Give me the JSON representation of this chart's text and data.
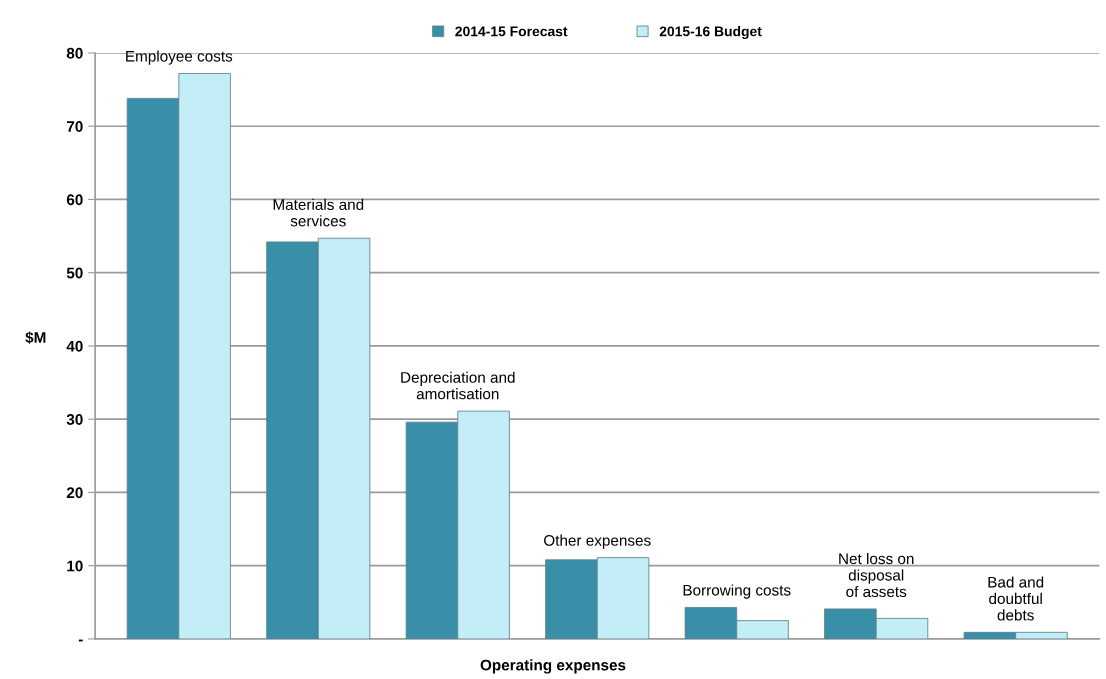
{
  "chart_data": {
    "type": "bar",
    "xlabel": "Operating expenses",
    "ylabel": "$M",
    "categories": [
      "Employee costs",
      "Materials and\nservices",
      "Depreciation and\namortisation",
      "Other expenses",
      "Borrowing costs",
      "Net loss on\ndisposal\nof assets",
      "Bad and\ndoubtful\ndebts"
    ],
    "series": [
      {
        "name": "2014-15 Forecast",
        "color": "#3a8fa8",
        "values": [
          73.8,
          54.2,
          29.6,
          10.8,
          4.3,
          4.1,
          0.9
        ]
      },
      {
        "name": "2015-16 Budget",
        "color": "#c4eef7",
        "values": [
          77.2,
          54.7,
          31.1,
          11.1,
          2.5,
          2.8,
          0.9
        ]
      }
    ],
    "ylim": [
      0,
      80
    ],
    "yticks": [
      {
        "value": 0,
        "label": "-"
      },
      10,
      20,
      30,
      40,
      50,
      60,
      70,
      80
    ],
    "grid": "y",
    "legend": "top"
  }
}
